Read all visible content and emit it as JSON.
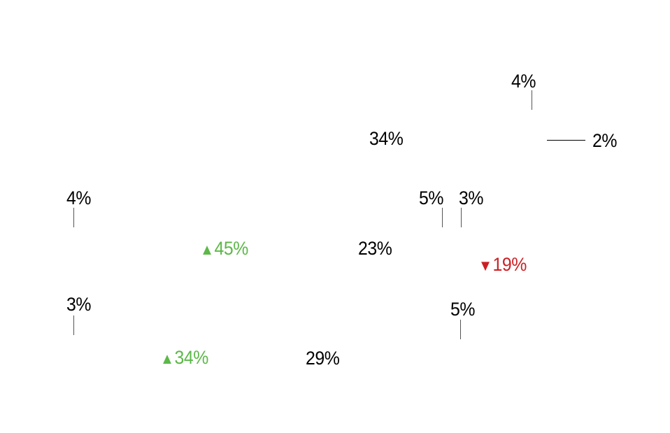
{
  "chart_data": {
    "type": "table",
    "colors": {
      "default": "#000000",
      "up": "#5cb848",
      "down": "#cc1f24",
      "leader": "#555555"
    },
    "labels": [
      {
        "value": "4%",
        "change": null
      },
      {
        "value": "34%",
        "change": null
      },
      {
        "value": "2%",
        "change": null
      },
      {
        "value": "4%",
        "change": null
      },
      {
        "value": "5%",
        "change": null
      },
      {
        "value": "3%",
        "change": null
      },
      {
        "value": "45%",
        "change": "up"
      },
      {
        "value": "23%",
        "change": null
      },
      {
        "value": "19%",
        "change": "down"
      },
      {
        "value": "3%",
        "change": null
      },
      {
        "value": "5%",
        "change": null
      },
      {
        "value": "34%",
        "change": "up"
      },
      {
        "value": "29%",
        "change": null
      }
    ],
    "icons": {
      "up": "▲",
      "down": "▼"
    }
  }
}
